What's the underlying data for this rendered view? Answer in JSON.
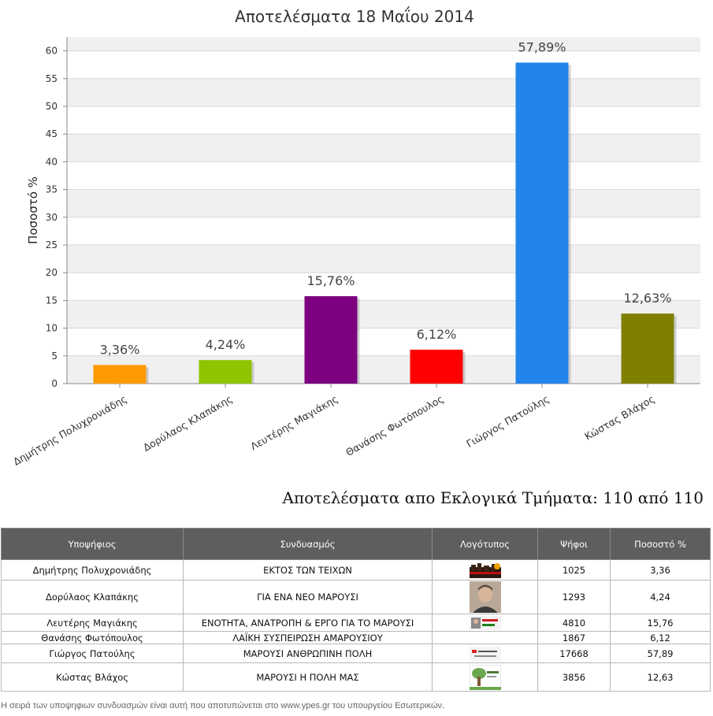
{
  "chart_data": {
    "type": "bar",
    "title": "Αποτελέσματα 18 Μαΐου 2014",
    "xlabel": "",
    "ylabel": "Ποσοστό %",
    "ylim": [
      0,
      62.5
    ],
    "yticks": [
      0,
      5,
      10,
      15,
      20,
      25,
      30,
      35,
      40,
      45,
      50,
      55,
      60
    ],
    "ytick_labels": [
      "0",
      "5",
      "10",
      "15",
      "20",
      "25",
      "30",
      "35",
      "40",
      "45",
      "50",
      "55",
      "60"
    ],
    "grid": "horizontal bands",
    "categories": [
      "Δημήτρης Πολυχρονιάδης",
      "Δορύλαος Κλαπάκης",
      "Λευτέρης Μαγιάκης",
      "Θανάσης Φωτόπουλος",
      "Γιώργος Πατούλης",
      "Κώστας Βλάχος"
    ],
    "values": [
      3.36,
      4.24,
      15.76,
      6.12,
      57.89,
      12.63
    ],
    "data_labels": [
      "3,36%",
      "4,24%",
      "15,76%",
      "6,12%",
      "57,89%",
      "12,63%"
    ],
    "colors": [
      "#ff9a00",
      "#8ec400",
      "#7d0080",
      "#ff0000",
      "#2285eb",
      "#808000"
    ]
  },
  "results_title": "Αποτελέσματα απο Εκλογικά Τμήματα: 110 από 110",
  "table": {
    "headers": [
      "Υποψήφιος",
      "Συνδυασμός",
      "Λογότυπος",
      "Ψήφοι",
      "Ποσοστό %"
    ],
    "rows": [
      {
        "candidate": "Δημήτρης Πολυχρονιάδης",
        "party": "ΕΚΤΟΣ ΤΩΝ ΤΕΙΧΩΝ",
        "logo": "ektos-ton-teixon-logo",
        "votes": "1025",
        "percent": "3,36"
      },
      {
        "candidate": "Δορύλαος Κλαπάκης",
        "party": "ΓΙΑ ΕΝΑ ΝΕΟ ΜΑΡΟΥΣΙ",
        "logo": "candidate-photo",
        "votes": "1293",
        "percent": "4,24"
      },
      {
        "candidate": "Λευτέρης Μαγιάκης",
        "party": "ΕΝΟΤΗΤΑ, ΑΝΑΤΡΟΠΗ & ΕΡΓΟ ΓΙΑ ΤΟ ΜΑΡΟΥΣΙ",
        "logo": "enotita-logo",
        "votes": "4810",
        "percent": "15,76"
      },
      {
        "candidate": "Θανάσης Φωτόπουλος",
        "party": "ΛΑΪΚΗ ΣΥΣΠΕΙΡΩΣΗ ΑΜΑΡΟΥΣΙΟΥ",
        "logo": "",
        "votes": "1867",
        "percent": "6,12"
      },
      {
        "candidate": "Γιώργος Πατούλης",
        "party": "ΜΑΡΟΥΣΙ ΑΝΘΡΩΠΙΝΗ ΠΟΛΗ",
        "logo": "marousi-anthropini-poli-logo",
        "votes": "17668",
        "percent": "57,89"
      },
      {
        "candidate": "Κώστας Βλάχος",
        "party": "ΜΑΡΟΥΣΙ Η ΠΟΛΗ ΜΑΣ",
        "logo": "marousi-i-poli-mas-logo",
        "votes": "3856",
        "percent": "12,63"
      }
    ]
  },
  "footnote": "Η σειρά των υποψηφιων συνδυασμών είναι αυτή που αποτυπώνεται στο www.ypes.gr του υπουργείου Εσωτερικών."
}
